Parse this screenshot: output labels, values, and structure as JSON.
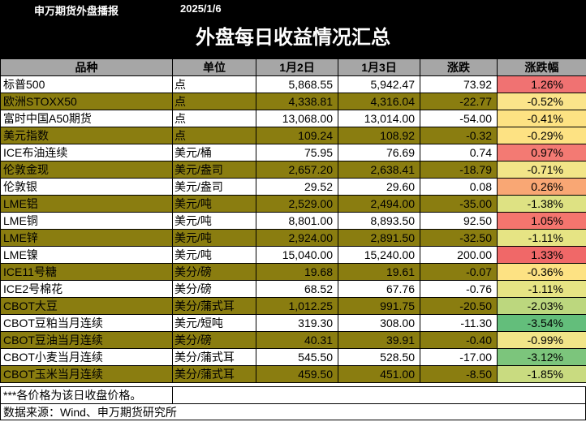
{
  "header": {
    "brand": "申万期货外盘播报",
    "date": "2025/1/6",
    "title": "外盘每日收益情况汇总"
  },
  "table": {
    "columns": [
      "品种",
      "单位",
      "1月2日",
      "1月3日",
      "涨跌",
      "涨跌幅"
    ],
    "rows": [
      {
        "name": "标普500",
        "unit": "点",
        "jan2": "5,868.55",
        "jan3": "5,942.47",
        "change": "73.92",
        "pct": "1.26%",
        "pct_color": "#f07272",
        "band": "white"
      },
      {
        "name": "欧洲STOXX50",
        "unit": "点",
        "jan2": "4,338.81",
        "jan3": "4,316.04",
        "change": "-22.77",
        "pct": "-0.52%",
        "pct_color": "#fbe48a",
        "band": "olive"
      },
      {
        "name": "富时中国A50期货",
        "unit": "点",
        "jan2": "13,068.00",
        "jan3": "13,014.00",
        "change": "-54.00",
        "pct": "-0.41%",
        "pct_color": "#fde283",
        "band": "white"
      },
      {
        "name": "美元指数",
        "unit": "点",
        "jan2": "109.24",
        "jan3": "108.92",
        "change": "-0.32",
        "pct": "-0.29%",
        "pct_color": "#fde283",
        "band": "olive"
      },
      {
        "name": "ICE布油连续",
        "unit": "美元/桶",
        "jan2": "75.95",
        "jan3": "76.69",
        "change": "0.74",
        "pct": "0.97%",
        "pct_color": "#f37a73",
        "band": "white"
      },
      {
        "name": "伦敦金现",
        "unit": "美元/盎司",
        "jan2": "2,657.20",
        "jan3": "2,638.41",
        "change": "-18.79",
        "pct": "-0.71%",
        "pct_color": "#f2e588",
        "band": "olive"
      },
      {
        "name": "伦敦银",
        "unit": "美元/盎司",
        "jan2": "29.52",
        "jan3": "29.60",
        "change": "0.08",
        "pct": "0.26%",
        "pct_color": "#f9a774",
        "band": "white"
      },
      {
        "name": "LME铝",
        "unit": "美元/吨",
        "jan2": "2,529.00",
        "jan3": "2,494.00",
        "change": "-35.00",
        "pct": "-1.38%",
        "pct_color": "#dee283",
        "band": "olive"
      },
      {
        "name": "LME铜",
        "unit": "美元/吨",
        "jan2": "8,801.00",
        "jan3": "8,893.50",
        "change": "92.50",
        "pct": "1.05%",
        "pct_color": "#f4756e",
        "band": "white"
      },
      {
        "name": "LME锌",
        "unit": "美元/吨",
        "jan2": "2,924.00",
        "jan3": "2,891.50",
        "change": "-32.50",
        "pct": "-1.11%",
        "pct_color": "#e6e484",
        "band": "olive"
      },
      {
        "name": "LME镍",
        "unit": "美元/吨",
        "jan2": "15,040.00",
        "jan3": "15,240.00",
        "change": "200.00",
        "pct": "1.33%",
        "pct_color": "#f06868",
        "band": "white"
      },
      {
        "name": "ICE11号糖",
        "unit": "美分/磅",
        "jan2": "19.68",
        "jan3": "19.61",
        "change": "-0.07",
        "pct": "-0.36%",
        "pct_color": "#fde283",
        "band": "olive"
      },
      {
        "name": "ICE2号棉花",
        "unit": "美分/磅",
        "jan2": "68.52",
        "jan3": "67.76",
        "change": "-0.76",
        "pct": "-1.11%",
        "pct_color": "#e6e484",
        "band": "white"
      },
      {
        "name": "CBOT大豆",
        "unit": "美分/蒲式耳",
        "jan2": "1,012.25",
        "jan3": "991.75",
        "change": "-20.50",
        "pct": "-2.03%",
        "pct_color": "#bcd77e",
        "band": "olive"
      },
      {
        "name": "CBOT豆粕当月连续",
        "unit": "美元/短吨",
        "jan2": "319.30",
        "jan3": "308.00",
        "change": "-11.30",
        "pct": "-3.54%",
        "pct_color": "#63be7b",
        "band": "white"
      },
      {
        "name": "CBOT豆油当月连续",
        "unit": "美分/磅",
        "jan2": "40.31",
        "jan3": "39.91",
        "change": "-0.40",
        "pct": "-0.99%",
        "pct_color": "#f1e588",
        "band": "olive"
      },
      {
        "name": "CBOT小麦当月连续",
        "unit": "美分/蒲式耳",
        "jan2": "545.50",
        "jan3": "528.50",
        "change": "-17.00",
        "pct": "-3.12%",
        "pct_color": "#7cc57c",
        "band": "white"
      },
      {
        "name": "CBOT玉米当月连续",
        "unit": "美分/蒲式耳",
        "jan2": "459.50",
        "jan3": "451.00",
        "change": "-8.50",
        "pct": "-1.85%",
        "pct_color": "#c9db80",
        "band": "olive"
      }
    ]
  },
  "footer": {
    "note": "***各价格为该日收盘价格。",
    "source": "数据来源：Wind、申万期货研究所"
  }
}
